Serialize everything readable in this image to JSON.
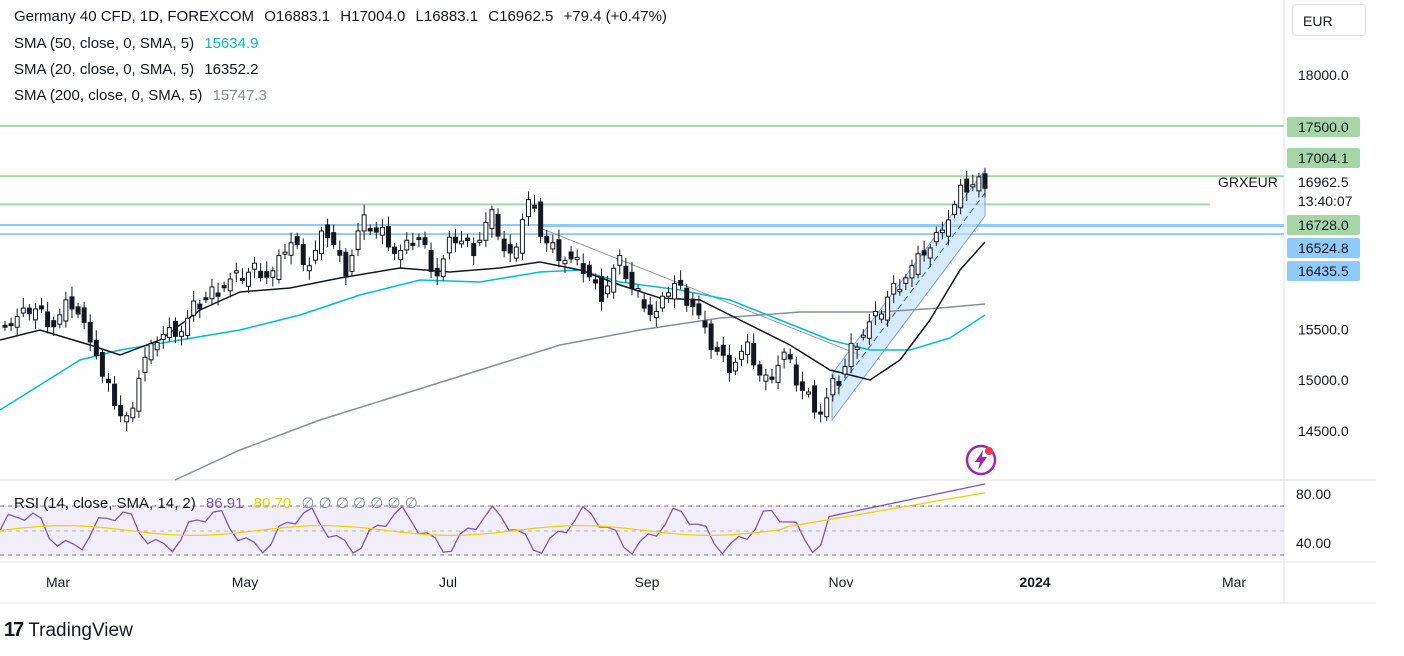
{
  "header": {
    "symbol": "Germany 40 CFD, 1D, FOREXCOM",
    "open": "O16883.1",
    "high": "H17004.0",
    "low": "L16883.1",
    "close": "C16962.5",
    "change": "+79.4 (+0.47%)"
  },
  "indicators": [
    {
      "label": "SMA (50, close, 0, SMA, 5)",
      "value": "15634.9",
      "color": "#00bcd4"
    },
    {
      "label": "SMA (20, close, 0, SMA, 5)",
      "value": "16352.2",
      "color": "#131722"
    },
    {
      "label": "SMA (200, close, 0, SMA, 5)",
      "value": "15747.3",
      "color": "#888f9a"
    }
  ],
  "rsi": {
    "label": "RSI (14, close, SMA, 14, 2)",
    "value": "86.91",
    "sma_value": "80.70",
    "empty_values": "∅ ∅ ∅ ∅ ∅ ∅ ∅"
  },
  "currency": "EUR",
  "brand": "TradingView",
  "icon": "lightning-bolt-icon",
  "price_axis": {
    "ticks": [
      "18000.0",
      "15500.0",
      "15000.0",
      "14500.0"
    ],
    "labels": [
      {
        "text": "17500.0",
        "color": "#a5d6a7"
      },
      {
        "text": "17004.1",
        "color": "#a5d6a7"
      },
      {
        "text": "16962.5",
        "color": "#ffffff"
      },
      {
        "text": "13:40:07",
        "color": "#ffffff"
      },
      {
        "text": "16728.0",
        "color": "#a5d6a7"
      },
      {
        "text": "16524.8",
        "color": "#90caf9"
      },
      {
        "text": "16435.5",
        "color": "#90caf9"
      }
    ],
    "symbol_tag": "GRXEUR"
  },
  "rsi_axis": {
    "ticks": [
      "80.00",
      "40.00"
    ]
  },
  "time_axis": {
    "ticks": [
      "Mar",
      "May",
      "Jul",
      "Sep",
      "Nov",
      "2024",
      "Mar"
    ]
  },
  "chart_data": {
    "type": "candlestick",
    "y_range": [
      14000,
      18400
    ],
    "horizontal_levels": [
      {
        "value": 17500,
        "color": "#a5d6a7"
      },
      {
        "value": 17004,
        "color": "#a5d6a7"
      },
      {
        "value": 16728,
        "color": "#a5d6a7"
      },
      {
        "value": 16524.8,
        "color": "#90caf9"
      },
      {
        "value": 16435.5,
        "color": "#90caf9"
      }
    ],
    "close_path": [
      15600,
      15700,
      15550,
      15750,
      15450,
      14900,
      14600,
      15200,
      15450,
      15500,
      15750,
      15900,
      16000,
      16100,
      16050,
      16350,
      16150,
      16450,
      16100,
      16550,
      16450,
      16250,
      16400,
      16050,
      16400,
      16300,
      16600,
      16200,
      16750,
      16350,
      16200,
      16100,
      15850,
      16150,
      15850,
      15650,
      15950,
      15750,
      15350,
      15150,
      15300,
      15000,
      15250,
      14900,
      14700,
      15000,
      15400,
      15600,
      15900,
      16100,
      16300,
      16600,
      16900,
      16962
    ]
  }
}
